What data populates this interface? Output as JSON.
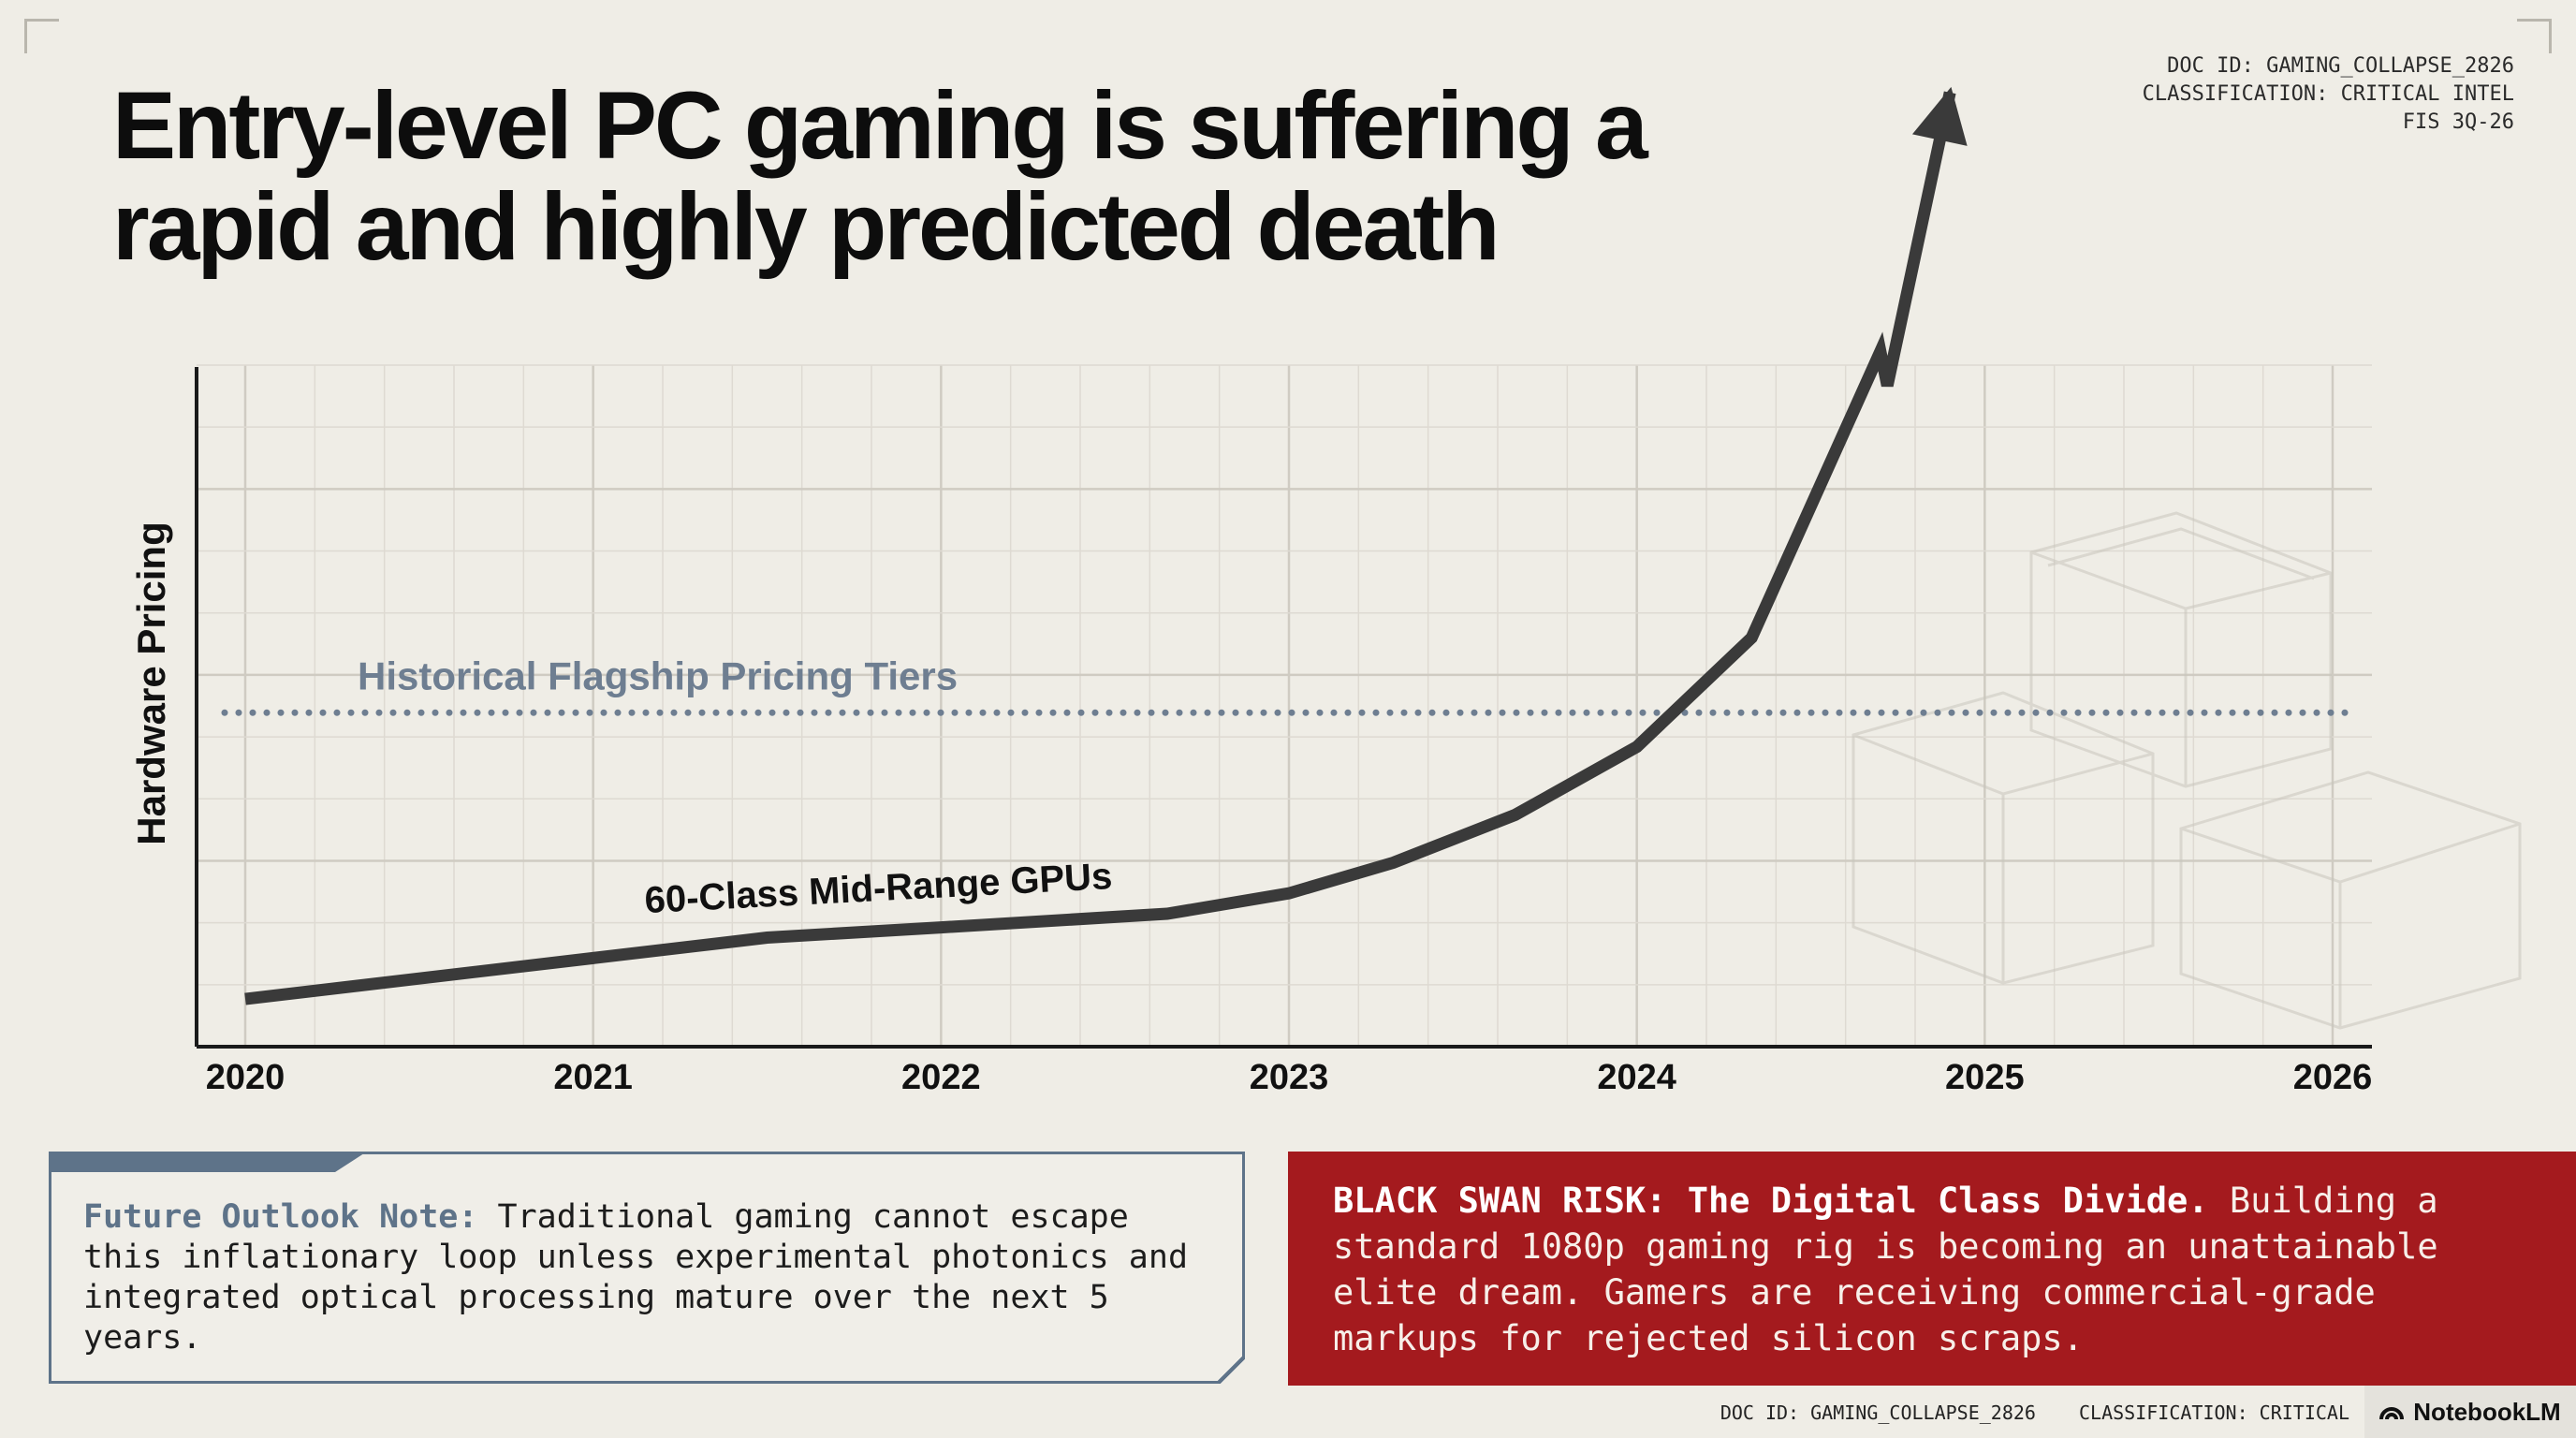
{
  "title": "Entry-level PC gaming is suffering a rapid and highly predicted death",
  "doc_meta": {
    "doc_id": "DOC ID: GAMING_COLLAPSE_2826",
    "classification": "CLASSIFICATION: CRITICAL INTEL",
    "period": "FIS 3Q-26"
  },
  "chart_data": {
    "type": "line",
    "title": "",
    "xlabel": "",
    "ylabel": "Hardware Pricing",
    "x": [
      2020,
      2021,
      2022,
      2023,
      2024,
      2025,
      2026
    ],
    "tick_labels": [
      "2020",
      "2021",
      "2022",
      "2023",
      "2024",
      "2025",
      "2026"
    ],
    "xlim": [
      2020,
      2026
    ],
    "ylim": [
      0,
      100
    ],
    "grid": true,
    "series": [
      {
        "name": "60-Class Mid-Range GPUs",
        "x": [
          2020,
          2020.5,
          2021,
          2021.5,
          2022,
          2022.65,
          2023,
          2023.3,
          2023.65,
          2024,
          2024.33,
          2024.7,
          2024.72,
          2024.9
        ],
        "values": [
          7,
          10,
          13,
          16,
          17.5,
          19.5,
          22.5,
          27,
          34,
          44,
          60,
          102,
          97,
          140
        ]
      }
    ],
    "reference_lines": [
      {
        "name": "Historical Flagship Pricing Tiers",
        "value": 49
      }
    ]
  },
  "note": {
    "heading": "Future Outlook Note:",
    "body": "Traditional gaming cannot escape this inflationary loop unless experimental photonics and integrated optical processing mature over the next 5 years."
  },
  "risk": {
    "heading": "BLACK SWAN RISK: The Digital Class Divide.",
    "body": "Building a standard 1080p gaming rig is becoming an unattainable elite dream. Gamers are receiving commercial-grade markups for rejected silicon scraps."
  },
  "footer": {
    "doc_id": "DOC ID: GAMING_COLLAPSE_2826",
    "classification": "CLASSIFICATION: CRITICAL"
  },
  "brand": "NotebookLM",
  "colors": {
    "background": "#efede6",
    "line": "#3a3a3a",
    "reference": "#6e7e91",
    "risk": "#a41a1e",
    "note_accent": "#5e7389"
  }
}
